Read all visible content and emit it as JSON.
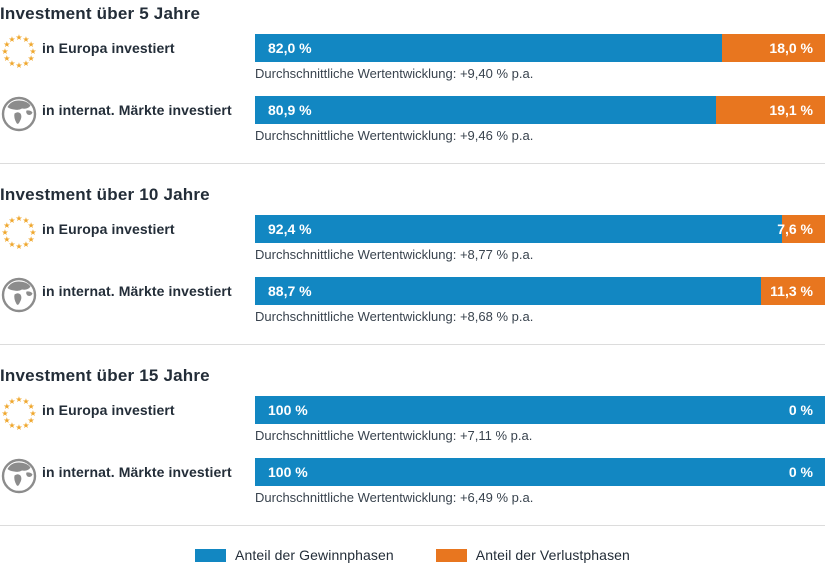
{
  "colors": {
    "gain": "#1287c2",
    "loss": "#e8761f",
    "heading": "#232d38",
    "divider": "#dcdcdc",
    "star_gold": "#efa72e",
    "globe_gray": "#8c8c8c"
  },
  "legend": {
    "items": [
      {
        "label": "Anteil der Gewinnphasen",
        "color_key": "gain"
      },
      {
        "label": "Anteil der Verlustphasen",
        "color_key": "loss"
      }
    ]
  },
  "chart_data": {
    "type": "bar",
    "stacked": true,
    "orientation": "horizontal",
    "unit": "%",
    "xlim": [
      0,
      100
    ],
    "grid": false,
    "legend_position": "bottom-center",
    "series_names": [
      "Anteil der Gewinnphasen",
      "Anteil der Verlustphasen"
    ],
    "sections": [
      {
        "title": "Investment über 5 Jahre",
        "rows": [
          {
            "icon": "eu-stars",
            "label": "in Europa investiert",
            "gain_pct": 82.0,
            "loss_pct": 18.0,
            "gain_label": "82,0 %",
            "loss_label": "18,0 %",
            "caption": "Durchschnittliche Wertentwicklung: +9,40 % p.a."
          },
          {
            "icon": "globe",
            "label": "in internat. Märkte investiert",
            "gain_pct": 80.9,
            "loss_pct": 19.1,
            "gain_label": "80,9 %",
            "loss_label": "19,1 %",
            "caption": "Durchschnittliche Wertentwicklung: +9,46 % p.a."
          }
        ]
      },
      {
        "title": "Investment über 10 Jahre",
        "rows": [
          {
            "icon": "eu-stars",
            "label": "in Europa investiert",
            "gain_pct": 92.4,
            "loss_pct": 7.6,
            "gain_label": "92,4 %",
            "loss_label": "7,6 %",
            "caption": "Durchschnittliche Wertentwicklung: +8,77 % p.a."
          },
          {
            "icon": "globe",
            "label": "in internat. Märkte investiert",
            "gain_pct": 88.7,
            "loss_pct": 11.3,
            "gain_label": "88,7 %",
            "loss_label": "11,3 %",
            "caption": "Durchschnittliche Wertentwicklung: +8,68 % p.a."
          }
        ]
      },
      {
        "title": "Investment über 15 Jahre",
        "rows": [
          {
            "icon": "eu-stars",
            "label": "in Europa investiert",
            "gain_pct": 100,
            "loss_pct": 0,
            "gain_label": "100 %",
            "loss_label": "0 %",
            "caption": "Durchschnittliche Wertentwicklung: +7,11 % p.a."
          },
          {
            "icon": "globe",
            "label": "in internat. Märkte investiert",
            "gain_pct": 100,
            "loss_pct": 0,
            "gain_label": "100 %",
            "loss_label": "0 %",
            "caption": "Durchschnittliche Wertentwicklung: +6,49 % p.a."
          }
        ]
      }
    ]
  }
}
